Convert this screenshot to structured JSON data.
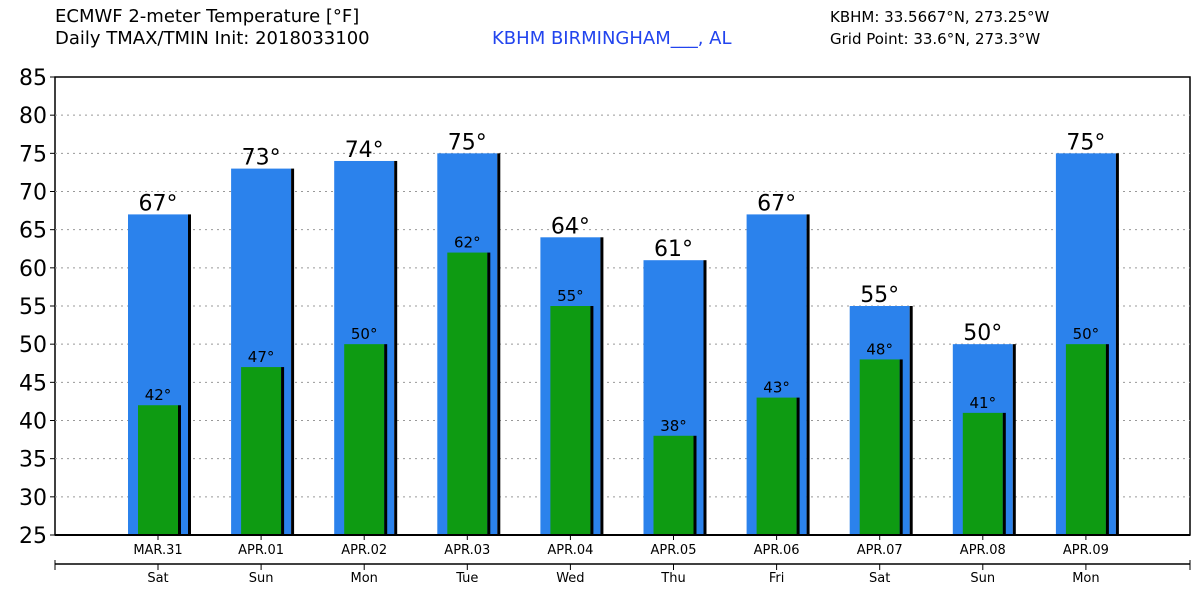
{
  "header": {
    "title_line1": "ECMWF 2-meter Temperature [°F]",
    "title_line2": "Daily TMAX/TMIN Init: 2018033100",
    "station": "KBHM BIRMINGHAM___, AL",
    "coords": "KBHM: 33.5667°N, 273.25°W",
    "grid_point": "Grid Point: 33.6°N, 273.3°W"
  },
  "colors": {
    "tmax": "#2b82ec",
    "tmin": "#0e9b12",
    "station": "#2244ee"
  },
  "chart_data": {
    "type": "bar",
    "title": "ECMWF 2-meter Temperature [°F]",
    "categories": [
      "MAR.31",
      "APR.01",
      "APR.02",
      "APR.03",
      "APR.04",
      "APR.05",
      "APR.06",
      "APR.07",
      "APR.08",
      "APR.09"
    ],
    "weekdays": [
      "Sat",
      "Sun",
      "Mon",
      "Tue",
      "Wed",
      "Thu",
      "Fri",
      "Sat",
      "Sun",
      "Mon"
    ],
    "series": [
      {
        "name": "TMAX",
        "values": [
          67,
          73,
          74,
          75,
          64,
          61,
          67,
          55,
          50,
          75
        ],
        "labels": [
          "67°",
          "73°",
          "74°",
          "75°",
          "64°",
          "61°",
          "67°",
          "55°",
          "50°",
          "75°"
        ]
      },
      {
        "name": "TMIN",
        "values": [
          42,
          47,
          50,
          62,
          55,
          38,
          43,
          48,
          41,
          50
        ],
        "labels": [
          "42°",
          "47°",
          "50°",
          "62°",
          "55°",
          "38°",
          "43°",
          "48°",
          "41°",
          "50°"
        ]
      }
    ],
    "yticks": [
      "25",
      "30",
      "35",
      "40",
      "45",
      "50",
      "55",
      "60",
      "65",
      "70",
      "75",
      "80",
      "85"
    ],
    "ylim": [
      25,
      85
    ],
    "grid": true
  }
}
